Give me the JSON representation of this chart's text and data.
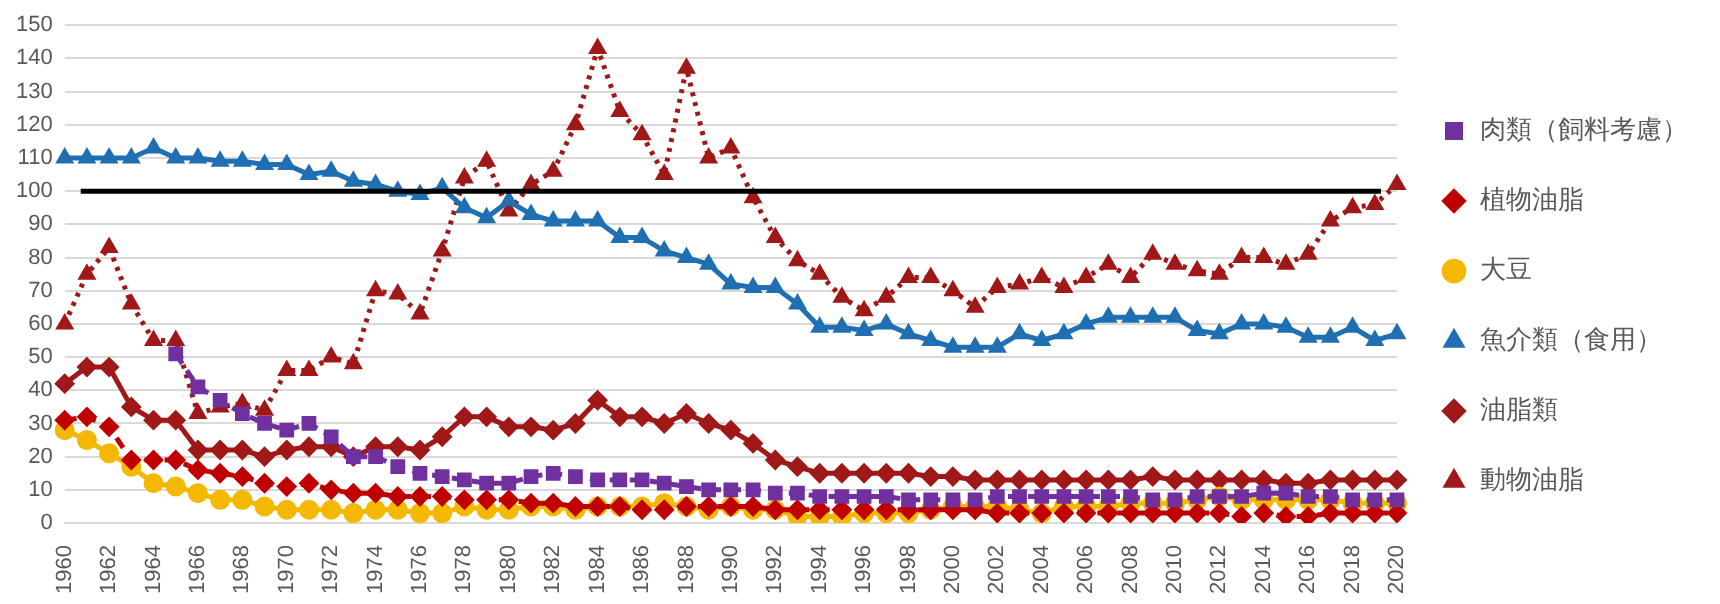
{
  "chart_data": {
    "type": "line",
    "categories": [
      "1960",
      null,
      "1962",
      null,
      "1964",
      null,
      "1966",
      null,
      "1968",
      null,
      "1970",
      null,
      "1972",
      null,
      "1974",
      null,
      "1976",
      null,
      "1978",
      null,
      "1980",
      null,
      "1982",
      null,
      "1984",
      null,
      "1986",
      null,
      "1988",
      null,
      "1990",
      null,
      "1992",
      null,
      "1994",
      null,
      "1996",
      null,
      "1998",
      null,
      "2000",
      null,
      "2002",
      null,
      "2004",
      null,
      "2006",
      null,
      "2008",
      null,
      "2010",
      null,
      "2012",
      null,
      "2014",
      null,
      "2016",
      null,
      "2018",
      null,
      "2020"
    ],
    "ylim": [
      0,
      150
    ],
    "yticks": [
      0,
      10,
      20,
      30,
      40,
      50,
      60,
      70,
      80,
      90,
      100,
      110,
      120,
      130,
      140,
      150
    ],
    "grid": "y",
    "legend": "right",
    "ref_lines": [
      {
        "axis": "y",
        "value": 100,
        "color": "#000000"
      }
    ],
    "series": [
      {
        "name": "大豆",
        "color": "#f5b800",
        "marker": "circle",
        "line_style": "solid",
        "values": [
          28,
          25,
          21,
          17,
          12,
          11,
          9,
          7,
          7,
          5,
          4,
          4,
          4,
          3,
          4,
          4,
          3,
          3,
          5,
          4,
          4,
          5,
          5,
          4,
          5,
          5,
          5,
          6,
          5,
          4,
          5,
          4,
          4,
          2,
          2,
          2,
          3,
          3,
          3,
          4,
          5,
          5,
          5,
          4,
          3,
          5,
          5,
          5,
          6,
          6,
          6,
          7,
          8,
          7,
          7,
          7,
          7,
          7,
          6,
          6,
          6
        ]
      },
      {
        "name": "肉類（飼料考慮）",
        "color": "#7030a0",
        "marker": "square",
        "line_style": "dashed",
        "values": [
          null,
          null,
          null,
          null,
          null,
          51,
          41,
          37,
          33,
          30,
          28,
          30,
          26,
          20,
          20,
          17,
          15,
          14,
          13,
          12,
          12,
          14,
          15,
          14,
          13,
          13,
          13,
          12,
          11,
          10,
          10,
          10,
          9,
          9,
          8,
          8,
          8,
          8,
          7,
          7,
          7,
          7,
          8,
          8,
          8,
          8,
          8,
          8,
          8,
          7,
          7,
          8,
          8,
          8,
          9,
          9,
          8,
          8,
          7,
          7,
          7
        ]
      },
      {
        "name": "魚介類（食用）",
        "color": "#1f6fb2",
        "marker": "triangle",
        "line_style": "solid",
        "values": [
          110,
          110,
          110,
          110,
          113,
          110,
          110,
          109,
          109,
          108,
          108,
          105,
          106,
          103,
          102,
          100,
          99,
          101,
          95,
          92,
          97,
          93,
          91,
          91,
          91,
          86,
          86,
          82,
          80,
          78,
          72,
          71,
          71,
          66,
          59,
          59,
          58,
          60,
          57,
          55,
          53,
          53,
          53,
          57,
          55,
          57,
          60,
          62,
          62,
          62,
          62,
          58,
          57,
          60,
          60,
          59,
          56,
          56,
          59,
          55,
          57
        ]
      },
      {
        "name": "油脂類",
        "color": "#a01818",
        "marker": "diamond",
        "line_style": "solid",
        "values": [
          42,
          47,
          47,
          35,
          31,
          31,
          22,
          22,
          22,
          20,
          22,
          23,
          23,
          20,
          23,
          23,
          22,
          26,
          32,
          32,
          29,
          29,
          28,
          30,
          37,
          32,
          32,
          30,
          33,
          30,
          28,
          24,
          19,
          17,
          15,
          15,
          15,
          15,
          15,
          14,
          14,
          13,
          13,
          13,
          13,
          13,
          13,
          13,
          13,
          14,
          13,
          13,
          13,
          13,
          13,
          12,
          12,
          13,
          13,
          13,
          13
        ]
      },
      {
        "name": "植物油脂",
        "color": "#c00000",
        "marker": "diamond",
        "line_style": "dashed",
        "values": [
          31,
          32,
          29,
          19,
          19,
          19,
          16,
          15,
          14,
          12,
          11,
          12,
          10,
          9,
          9,
          8,
          8,
          8,
          7,
          7,
          7,
          6,
          6,
          5,
          5,
          5,
          4,
          4,
          5,
          5,
          5,
          5,
          4,
          4,
          4,
          4,
          4,
          4,
          4,
          4,
          4,
          4,
          3,
          3,
          3,
          3,
          3,
          3,
          3,
          3,
          3,
          3,
          3,
          2,
          3,
          2,
          2,
          3,
          3,
          3,
          3
        ]
      },
      {
        "name": "動物油脂",
        "color": "#a01818",
        "marker": "triangle",
        "line_style": "dotted",
        "values": [
          60,
          75,
          83,
          66,
          55,
          55,
          33,
          35,
          36,
          34,
          46,
          46,
          50,
          48,
          70,
          69,
          63,
          82,
          104,
          109,
          94,
          102,
          106,
          120,
          143,
          124,
          117,
          105,
          137,
          110,
          113,
          98,
          86,
          79,
          75,
          68,
          64,
          68,
          74,
          74,
          70,
          65,
          71,
          72,
          74,
          71,
          74,
          78,
          74,
          81,
          78,
          76,
          75,
          80,
          80,
          78,
          81,
          91,
          95,
          96,
          102
        ]
      }
    ]
  }
}
